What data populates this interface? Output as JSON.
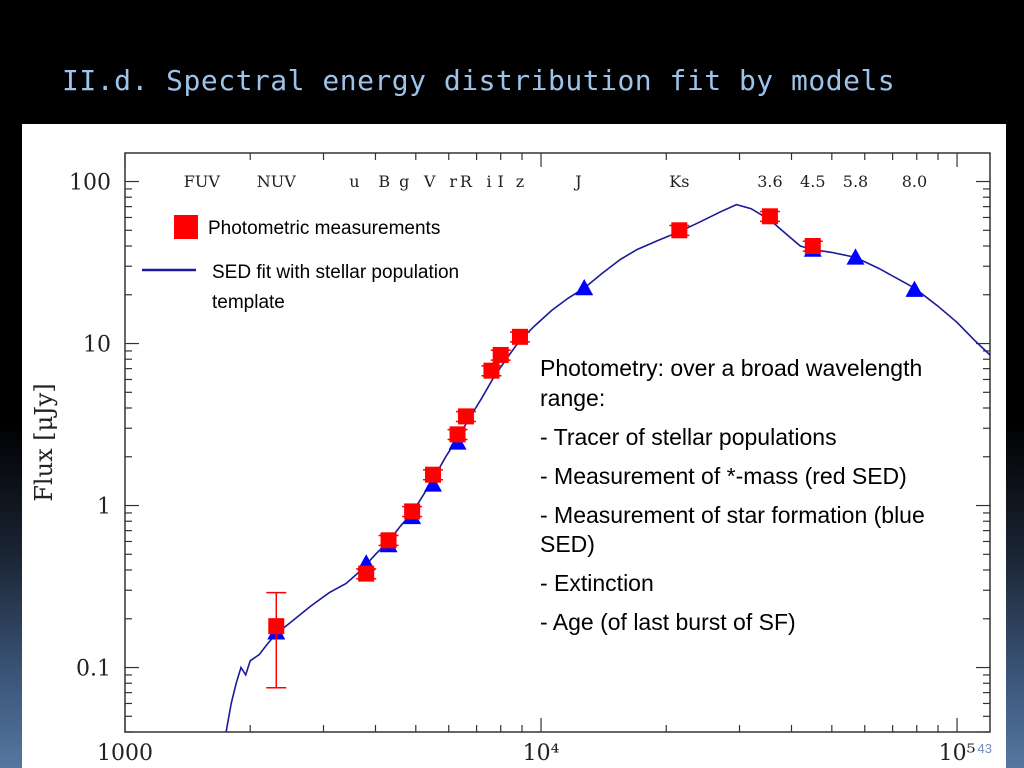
{
  "slide": {
    "title": "II.d. Spectral energy distribution fit by models",
    "page_number": "43"
  },
  "text_box": {
    "lines": [
      "Photometry: over a broad wavelength range:",
      "- Tracer of stellar populations",
      "- Measurement of *-mass (red SED)",
      "- Measurement of  star formation (blue SED)",
      "- Extinction",
      "- Age (of last burst of SF)"
    ]
  },
  "chart_data": {
    "type": "scatter",
    "title": "",
    "xlabel": "",
    "ylabel": "Flux [μJy]",
    "xscale": "log",
    "yscale": "log",
    "xlim": [
      1000,
      120000
    ],
    "ylim": [
      0.04,
      150
    ],
    "x_ticks": [
      {
        "value": 1000,
        "label": "1000"
      },
      {
        "value": 10000,
        "label": "10⁴"
      },
      {
        "value": 100000,
        "label": "10⁵"
      }
    ],
    "y_ticks": [
      {
        "value": 0.1,
        "label": "0.1"
      },
      {
        "value": 1,
        "label": "1"
      },
      {
        "value": 10,
        "label": "10"
      },
      {
        "value": 100,
        "label": "100"
      }
    ],
    "band_labels": [
      {
        "label": "FUV",
        "x": 1530
      },
      {
        "label": "NUV",
        "x": 2310
      },
      {
        "label": "u",
        "x": 3560
      },
      {
        "label": "B",
        "x": 4200
      },
      {
        "label": "g",
        "x": 4690
      },
      {
        "label": "V",
        "x": 5400
      },
      {
        "label": "r",
        "x": 6150
      },
      {
        "label": "R",
        "x": 6600
      },
      {
        "label": "i",
        "x": 7500
      },
      {
        "label": "I",
        "x": 8000
      },
      {
        "label": "z",
        "x": 8900
      },
      {
        "label": "J",
        "x": 12300
      },
      {
        "label": "Ks",
        "x": 21500
      },
      {
        "label": "3.6",
        "x": 35500
      },
      {
        "label": "4.5",
        "x": 45000
      },
      {
        "label": "5.8",
        "x": 57000
      },
      {
        "label": "8.0",
        "x": 79000
      }
    ],
    "legend": {
      "placement": "top-left",
      "entries": [
        {
          "label": "Photometric measurements",
          "marker": "square",
          "color": "#ff0000"
        },
        {
          "label": "SED fit with stellar population template",
          "marker": "line",
          "color": "#1a1a9a"
        }
      ]
    },
    "series": [
      {
        "name": "Photometric measurements",
        "marker": "square",
        "color": "#ff0000",
        "points": [
          {
            "x": 2310,
            "y": 0.18,
            "ylow": 0.075,
            "yhigh": 0.29
          },
          {
            "x": 3800,
            "y": 0.38
          },
          {
            "x": 4300,
            "y": 0.61
          },
          {
            "x": 4900,
            "y": 0.92
          },
          {
            "x": 5500,
            "y": 1.55
          },
          {
            "x": 6300,
            "y": 2.75
          },
          {
            "x": 6600,
            "y": 3.55
          },
          {
            "x": 7600,
            "y": 6.8
          },
          {
            "x": 8000,
            "y": 8.5
          },
          {
            "x": 8900,
            "y": 11.0
          },
          {
            "x": 21500,
            "y": 50
          },
          {
            "x": 35500,
            "y": 61
          },
          {
            "x": 45000,
            "y": 40
          }
        ]
      },
      {
        "name": "SED fit with stellar population template",
        "marker": "triangle",
        "color": "#0000ff",
        "points": [
          {
            "x": 2310,
            "y": 0.165
          },
          {
            "x": 3800,
            "y": 0.44
          },
          {
            "x": 4300,
            "y": 0.57
          },
          {
            "x": 4900,
            "y": 0.85
          },
          {
            "x": 5500,
            "y": 1.35
          },
          {
            "x": 6300,
            "y": 2.45
          },
          {
            "x": 12700,
            "y": 22
          },
          {
            "x": 45000,
            "y": 38
          },
          {
            "x": 57000,
            "y": 34
          },
          {
            "x": 79000,
            "y": 21.5
          }
        ]
      },
      {
        "name": "SED fit with stellar population template",
        "type": "line",
        "color": "#1a1a9a",
        "points": [
          {
            "x": 1750,
            "y": 0.04
          },
          {
            "x": 1800,
            "y": 0.06
          },
          {
            "x": 1850,
            "y": 0.08
          },
          {
            "x": 1900,
            "y": 0.1
          },
          {
            "x": 1950,
            "y": 0.09
          },
          {
            "x": 2000,
            "y": 0.11
          },
          {
            "x": 2100,
            "y": 0.12
          },
          {
            "x": 2200,
            "y": 0.14
          },
          {
            "x": 2300,
            "y": 0.16
          },
          {
            "x": 2500,
            "y": 0.19
          },
          {
            "x": 2800,
            "y": 0.24
          },
          {
            "x": 3100,
            "y": 0.29
          },
          {
            "x": 3400,
            "y": 0.33
          },
          {
            "x": 3700,
            "y": 0.4
          },
          {
            "x": 4000,
            "y": 0.5
          },
          {
            "x": 4300,
            "y": 0.6
          },
          {
            "x": 4600,
            "y": 0.75
          },
          {
            "x": 4900,
            "y": 0.9
          },
          {
            "x": 5200,
            "y": 1.15
          },
          {
            "x": 5500,
            "y": 1.45
          },
          {
            "x": 5900,
            "y": 2.0
          },
          {
            "x": 6300,
            "y": 2.6
          },
          {
            "x": 6700,
            "y": 3.4
          },
          {
            "x": 7200,
            "y": 4.6
          },
          {
            "x": 7700,
            "y": 6.2
          },
          {
            "x": 8300,
            "y": 8.2
          },
          {
            "x": 8900,
            "y": 10.5
          },
          {
            "x": 9700,
            "y": 13
          },
          {
            "x": 10600,
            "y": 16
          },
          {
            "x": 11600,
            "y": 19
          },
          {
            "x": 12700,
            "y": 22
          },
          {
            "x": 14000,
            "y": 27
          },
          {
            "x": 15500,
            "y": 33
          },
          {
            "x": 17000,
            "y": 38
          },
          {
            "x": 19000,
            "y": 43
          },
          {
            "x": 21500,
            "y": 49
          },
          {
            "x": 24000,
            "y": 56
          },
          {
            "x": 27000,
            "y": 65
          },
          {
            "x": 29500,
            "y": 72
          },
          {
            "x": 32000,
            "y": 68
          },
          {
            "x": 35500,
            "y": 58
          },
          {
            "x": 39000,
            "y": 47
          },
          {
            "x": 42000,
            "y": 40
          },
          {
            "x": 45000,
            "y": 38
          },
          {
            "x": 50000,
            "y": 36.5
          },
          {
            "x": 57000,
            "y": 34
          },
          {
            "x": 65000,
            "y": 29
          },
          {
            "x": 79000,
            "y": 22
          },
          {
            "x": 90000,
            "y": 17
          },
          {
            "x": 100000,
            "y": 13.5
          },
          {
            "x": 110000,
            "y": 10.5
          },
          {
            "x": 120000,
            "y": 8.5
          }
        ]
      }
    ]
  }
}
